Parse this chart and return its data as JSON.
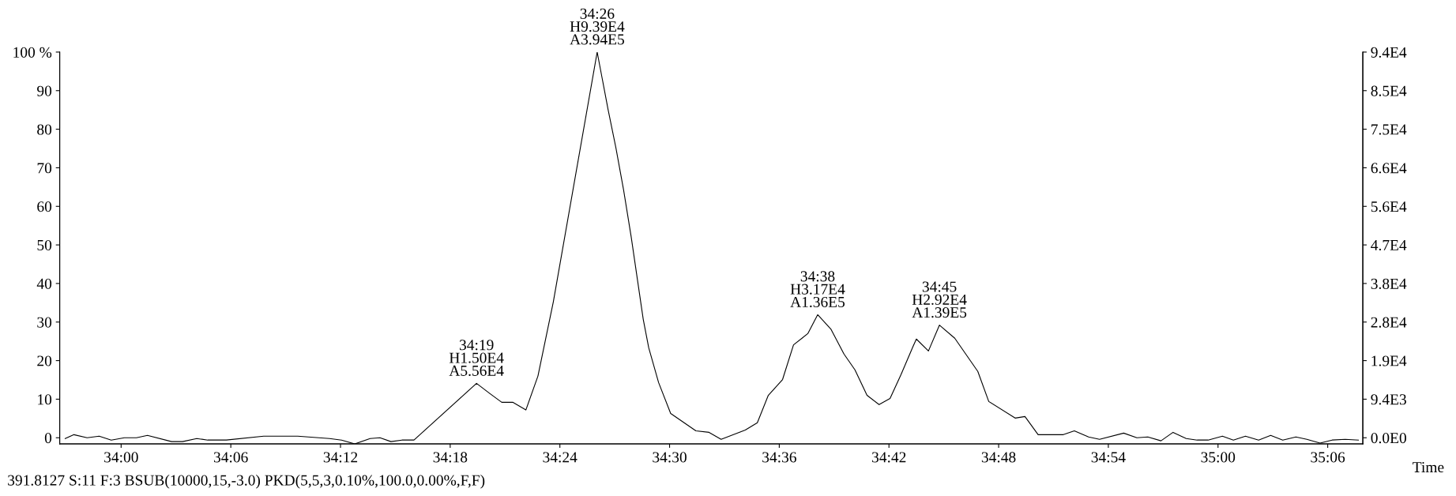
{
  "chart_data": {
    "type": "line",
    "xlabel": "Time",
    "x": [
      33.949,
      33.957,
      33.969,
      33.98,
      33.991,
      34.003,
      34.014,
      34.024,
      34.046,
      34.056,
      34.069,
      34.079,
      34.096,
      34.13,
      34.161,
      34.19,
      34.201,
      34.213,
      34.227,
      34.236,
      34.246,
      34.256,
      34.267,
      34.324,
      34.336,
      34.347,
      34.357,
      34.369,
      34.38,
      34.394,
      34.434,
      34.444,
      34.451,
      34.458,
      34.465,
      34.476,
      34.481,
      34.49,
      34.501,
      34.524,
      34.536,
      34.547,
      34.569,
      34.58,
      34.59,
      34.603,
      34.613,
      34.626,
      34.635,
      34.647,
      34.659,
      34.669,
      34.68,
      34.691,
      34.701,
      34.711,
      34.722,
      34.725,
      34.736,
      34.746,
      34.76,
      34.781,
      34.791,
      34.815,
      34.824,
      34.836,
      34.859,
      34.869,
      34.882,
      34.892,
      34.914,
      34.926,
      34.936,
      34.948,
      34.959,
      34.971,
      34.981,
      34.991,
      35.004,
      35.014,
      35.025,
      35.037,
      35.048,
      35.059,
      35.071,
      35.081,
      35.093,
      35.104,
      35.116,
      35.128
    ],
    "series": [
      {
        "color": "#000000",
        "values": [
          -0.2,
          0.8,
          0,
          0.4,
          -0.6,
          0,
          0,
          0.6,
          -1,
          -1,
          -0.2,
          -0.6,
          -0.6,
          0.4,
          0.4,
          -0.2,
          -0.6,
          -1.6,
          -0.2,
          0,
          -1,
          -0.6,
          -0.6,
          14.1,
          11.5,
          9.2,
          9.2,
          7.2,
          16,
          35.2,
          100,
          85,
          75.3,
          64.4,
          52.1,
          30.7,
          23.3,
          14.3,
          6.3,
          1.8,
          1.4,
          -0.4,
          2,
          3.9,
          11,
          15.1,
          24.1,
          27,
          31.9,
          28.2,
          21.7,
          17.6,
          11,
          8.6,
          10.2,
          16.4,
          23.7,
          25.6,
          22.5,
          29.2,
          25.8,
          17.2,
          9.4,
          5.1,
          5.5,
          0.8,
          0.8,
          1.8,
          0.2,
          -0.4,
          1.2,
          0,
          0.2,
          -0.8,
          1.4,
          -0.2,
          -0.6,
          -0.6,
          0.4,
          -0.6,
          0.4,
          -0.6,
          0.6,
          -0.6,
          0.2,
          -0.4,
          -1.4,
          -0.6,
          -0.4,
          -0.6
        ]
      }
    ],
    "xlim": [
      33.944,
      35.132
    ],
    "xticks": [
      {
        "value": 34.0,
        "label": "34:00"
      },
      {
        "value": 34.1,
        "label": "34:06"
      },
      {
        "value": 34.2,
        "label": "34:12"
      },
      {
        "value": 34.3,
        "label": "34:18"
      },
      {
        "value": 34.4,
        "label": "34:24"
      },
      {
        "value": 34.5,
        "label": "34:30"
      },
      {
        "value": 34.6,
        "label": "34:36"
      },
      {
        "value": 34.7,
        "label": "34:42"
      },
      {
        "value": 34.8,
        "label": "34:48"
      },
      {
        "value": 34.9,
        "label": "34:54"
      },
      {
        "value": 35.0,
        "label": "35:00"
      },
      {
        "value": 35.1,
        "label": "35:06"
      }
    ],
    "ylim": [
      -1.6,
      100
    ],
    "yticks": [
      0,
      10,
      20,
      30,
      40,
      50,
      60,
      70,
      80,
      90,
      {
        "value": 100,
        "label": "100 %"
      }
    ],
    "y2lim": [
      -1504,
      94000
    ],
    "y2ticks": [
      {
        "value": 0,
        "label": "0.0E0"
      },
      {
        "value": 9400,
        "label": "9.4E3"
      },
      {
        "value": 18800,
        "label": "1.9E4"
      },
      {
        "value": 28200,
        "label": "2.8E4"
      },
      {
        "value": 37600,
        "label": "3.8E4"
      },
      {
        "value": 47000,
        "label": "4.7E4"
      },
      {
        "value": 56400,
        "label": "5.6E4"
      },
      {
        "value": 65800,
        "label": "6.6E4"
      },
      {
        "value": 75200,
        "label": "7.5E4"
      },
      {
        "value": 84600,
        "label": "8.5E4"
      },
      {
        "value": 94000,
        "label": "9.4E4"
      }
    ],
    "grid": false,
    "legend": false,
    "annotations": [
      {
        "text": "34:19\nH1.50E4\nA5.56E4",
        "x": 34.324,
        "y": 14.1
      },
      {
        "text": "34:26\nH9.39E4\nA3.94E5",
        "x": 34.434,
        "y": 100
      },
      {
        "text": "34:38\nH3.17E4\nA1.36E5",
        "x": 34.635,
        "y": 31.9
      },
      {
        "text": "34:45\nH2.92E4\nA1.39E5",
        "x": 34.746,
        "y": 29.2
      },
      "391.8127 S:11 F:3 BSUB(10000,15,-3.0) PKD(5,5,3,0.10%,100.0,0.00%,F,F)"
    ]
  }
}
